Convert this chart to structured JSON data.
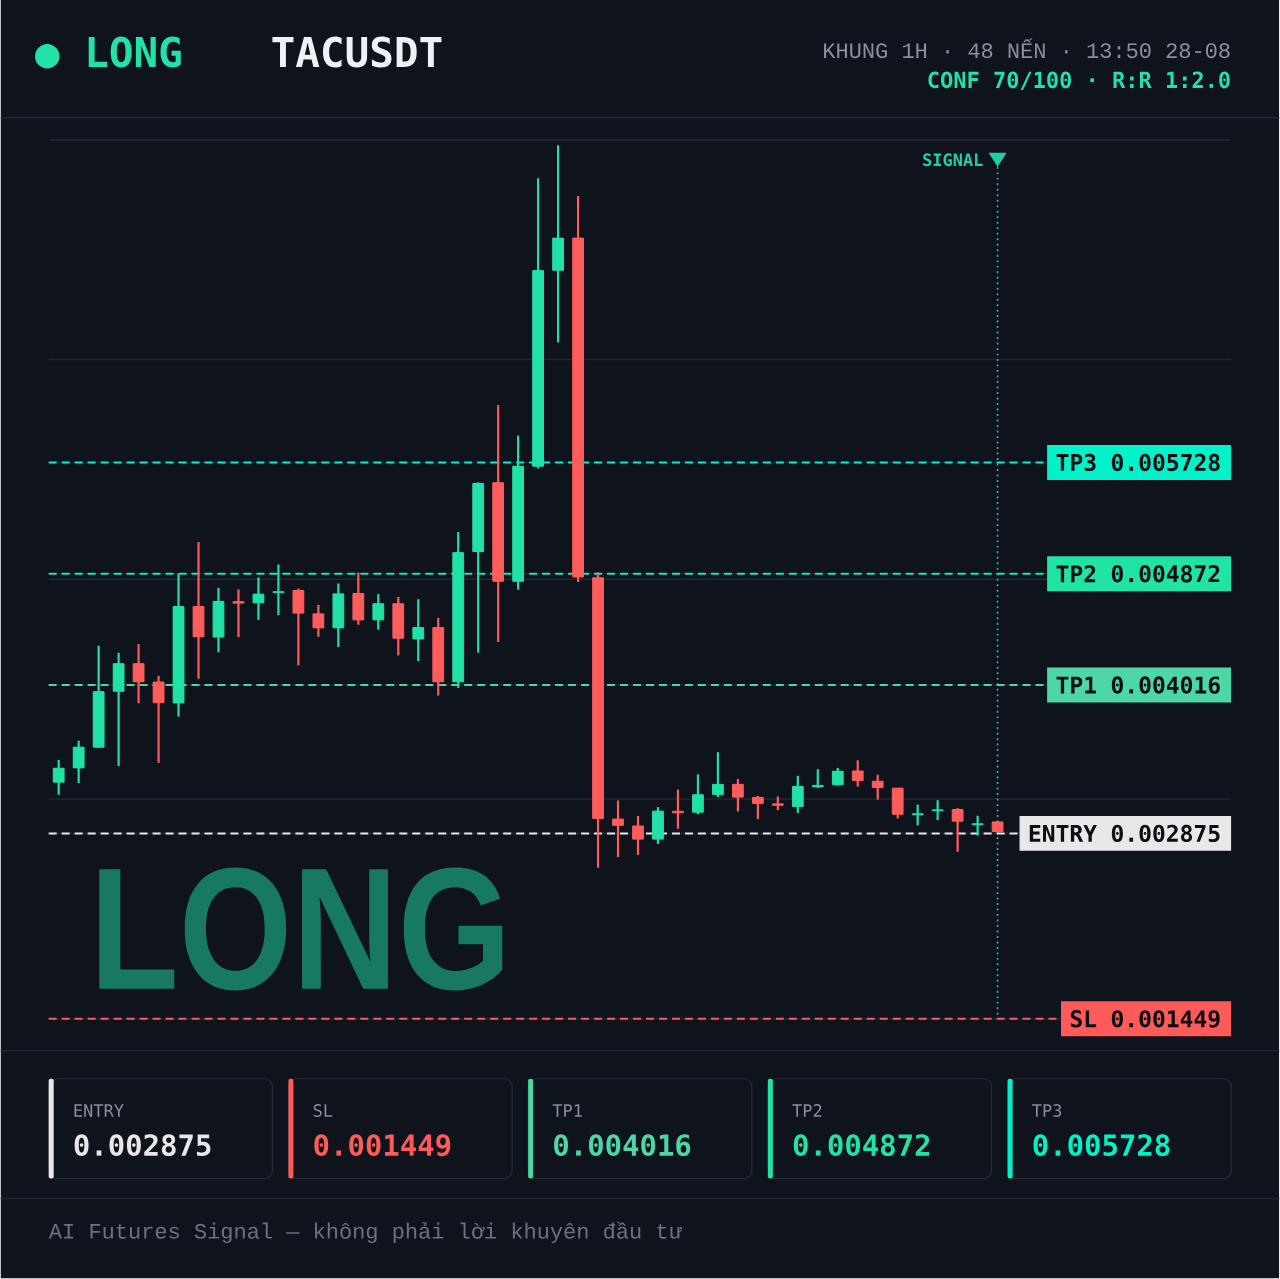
{
  "chart_data": {
    "type": "candlestick",
    "title": "TACUSDT",
    "subtitle": "KHUNG 1H · 48 NẾN · 13:50 28-08",
    "annotations": [
      "● LONG",
      "CONF 70/100 · R:R 1:2.0",
      "LONG",
      "AI Futures Signal — không phải lời khuyên đầu tư",
      "SIGNAL",
      "0.002875",
      "0.001449",
      "0.004016",
      "0.004872",
      "0.005728"
    ],
    "categories": [
      null,
      null,
      null,
      null,
      null,
      null,
      null,
      null,
      null,
      null,
      null,
      null,
      null,
      null,
      null,
      null,
      null,
      null,
      null,
      null,
      null,
      null,
      null,
      null,
      null,
      null,
      null,
      null,
      null,
      null,
      null,
      null,
      null,
      null,
      null,
      null,
      null,
      null,
      null,
      null,
      null,
      null,
      null,
      null,
      null,
      null,
      null,
      null
    ],
    "ohlc": [
      [
        0.003269,
        0.00344,
        0.003172,
        0.003376
      ],
      [
        0.003379,
        0.003588,
        0.003261,
        0.003538
      ],
      [
        0.003538,
        0.004318,
        0.003532,
        0.003965
      ],
      [
        0.003968,
        0.004264,
        0.003394,
        0.00418
      ],
      [
        0.00418,
        0.004331,
        0.003876,
        0.004041
      ],
      [
        0.004039,
        0.004087,
        0.003417,
        0.00388
      ],
      [
        0.003878,
        0.004874,
        0.003773,
        0.00462
      ],
      [
        0.00462,
        0.005116,
        0.004064,
        0.004387
      ],
      [
        0.004385,
        0.004763,
        0.004267,
        0.004659
      ],
      [
        0.004657,
        0.004751,
        0.004385,
        0.004646
      ],
      [
        0.004648,
        0.004843,
        0.004517,
        0.004715
      ],
      [
        0.004726,
        0.004943,
        0.004553,
        0.004734
      ],
      [
        0.004743,
        0.004758,
        0.004167,
        0.004569
      ],
      [
        0.004563,
        0.004632,
        0.004387,
        0.004456
      ],
      [
        0.004456,
        0.004797,
        0.004308,
        0.004717
      ],
      [
        0.00472,
        0.004881,
        0.004479,
        0.004517
      ],
      [
        0.004517,
        0.004715,
        0.004441,
        0.004641
      ],
      [
        0.004641,
        0.004693,
        0.004244,
        0.004376
      ],
      [
        0.00437,
        0.004676,
        0.0042,
        0.004458
      ],
      [
        0.004458,
        0.004532,
        0.003935,
        0.004041
      ],
      [
        0.004041,
        0.005193,
        0.003994,
        0.005034
      ],
      [
        0.005043,
        0.005575,
        0.004265,
        0.005566
      ],
      [
        0.005572,
        0.006169,
        0.004347,
        0.004814
      ],
      [
        0.004814,
        0.005934,
        0.004749,
        0.005699
      ],
      [
        0.005699,
        0.007914,
        0.005681,
        0.007203
      ],
      [
        0.007206,
        0.008167,
        0.006651,
        0.007453
      ],
      [
        0.007453,
        0.007776,
        0.004808,
        0.004847
      ],
      [
        0.004841,
        0.004884,
        0.002611,
        0.00299
      ],
      [
        0.002985,
        0.003128,
        0.002693,
        0.002937
      ],
      [
        0.002932,
        0.003009,
        0.002709,
        0.002831
      ],
      [
        0.002831,
        0.003077,
        0.002794,
        0.003046
      ],
      [
        0.003045,
        0.003212,
        0.00291,
        0.003033
      ],
      [
        0.003038,
        0.003329,
        0.003022,
        0.003172
      ],
      [
        0.003175,
        0.003499,
        0.003154,
        0.003252
      ],
      [
        0.003252,
        0.003294,
        0.003043,
        0.003154
      ],
      [
        0.003152,
        0.003162,
        0.002985,
        0.003106
      ],
      [
        0.003102,
        0.003159,
        0.003053,
        0.003091
      ],
      [
        0.003082,
        0.003318,
        0.003033,
        0.003236
      ],
      [
        0.003233,
        0.003369,
        0.003225,
        0.003244
      ],
      [
        0.003249,
        0.003379,
        0.003244,
        0.003353
      ],
      [
        0.003355,
        0.003437,
        0.003234,
        0.003281
      ],
      [
        0.003276,
        0.003326,
        0.003135,
        0.003228
      ],
      [
        0.003223,
        0.003223,
        0.00299,
        0.003022
      ],
      [
        0.003018,
        0.003096,
        0.002937,
        0.003026
      ],
      [
        0.003049,
        0.00313,
        0.002977,
        0.003056
      ],
      [
        0.003059,
        0.003069,
        0.002733,
        0.002969
      ],
      [
        0.002941,
        0.003011,
        0.002858,
        0.002949
      ],
      [
        0.002963,
        0.002972,
        0.002887,
        0.002889
      ]
    ],
    "colors": [
      "#21e1a6",
      "#21e1a6",
      "#21e1a6",
      "#21e1a6",
      "#ff5c5c",
      "#ff5c5c",
      "#21e1a6",
      "#ff5c5c",
      "#21e1a6",
      "#ff5c5c",
      "#21e1a6",
      "#21e1a6",
      "#ff5c5c",
      "#ff5c5c",
      "#21e1a6",
      "#ff5c5c",
      "#21e1a6",
      "#ff5c5c",
      "#21e1a6",
      "#ff5c5c",
      "#21e1a6",
      "#21e1a6",
      "#ff5c5c",
      "#21e1a6",
      "#21e1a6",
      "#21e1a6",
      "#ff5c5c",
      "#ff5c5c",
      "#ff5c5c",
      "#ff5c5c",
      "#21e1a6",
      "#ff5c5c",
      "#21e1a6",
      "#21e1a6",
      "#ff5c5c",
      "#ff5c5c",
      "#ff5c5c",
      "#21e1a6",
      "#21e1a6",
      "#21e1a6",
      "#ff5c5c",
      "#ff5c5c",
      "#ff5c5c",
      "#21e1a6",
      "#21e1a6",
      "#ff5c5c",
      "#21e1a6",
      "#ff5c5c"
    ],
    "ylim": [
      0.001449,
      0.008209
    ],
    "yticks": [
      0.001449,
      0.002875,
      {
        "value": 0.003139,
        "label": null
      },
      0.004016,
      {
        "value": 0.004829,
        "label": null
      },
      0.004872,
      0.005728,
      {
        "value": 0.006519,
        "label": null
      },
      {
        "value": 0.008209,
        "label": null
      }
    ],
    "grid": "y",
    "tick_labels": "y",
    "ref_lines": [
      {
        "axis": "y",
        "value": 0.002875,
        "label": "ENTRY",
        "color": "#e8e8e8",
        "line_style": "dashed"
      },
      {
        "axis": "y",
        "value": 0.001449,
        "label": "SL",
        "color": "#ff5a5a",
        "line_style": "dashed"
      },
      {
        "axis": "y",
        "value": 0.004016,
        "label": "TP1",
        "color": "#4dd6a6",
        "line_style": "dashed"
      },
      {
        "axis": "y",
        "value": 0.004872,
        "label": "TP2",
        "color": "#20e3a6",
        "line_style": "dashed"
      },
      {
        "axis": "y",
        "value": 0.005728,
        "label": "TP3",
        "color": "#00f2c8",
        "line_style": "dashed"
      }
    ]
  }
}
